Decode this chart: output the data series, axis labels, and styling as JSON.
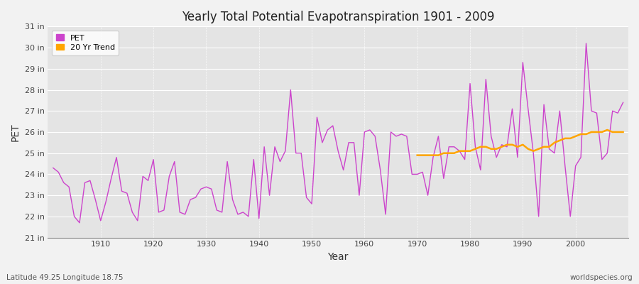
{
  "title": "Yearly Total Potential Evapotranspiration 1901 - 2009",
  "xlabel": "Year",
  "ylabel": "PET",
  "subtitle_left": "Latitude 49.25 Longitude 18.75",
  "subtitle_right": "worldspecies.org",
  "ylim": [
    21,
    31
  ],
  "ytick_labels": [
    "21 in",
    "22 in",
    "23 in",
    "24 in",
    "25 in",
    "26 in",
    "27 in",
    "28 in",
    "29 in",
    "30 in",
    "31 in"
  ],
  "ytick_values": [
    21,
    22,
    23,
    24,
    25,
    26,
    27,
    28,
    29,
    30,
    31
  ],
  "pet_color": "#cc44cc",
  "trend_color": "#ffa500",
  "fig_bg_color": "#f0f0f0",
  "plot_bg_color": "#e0e0e8",
  "legend_labels": [
    "PET",
    "20 Yr Trend"
  ],
  "years": [
    1901,
    1902,
    1903,
    1904,
    1905,
    1906,
    1907,
    1908,
    1909,
    1910,
    1911,
    1912,
    1913,
    1914,
    1915,
    1916,
    1917,
    1918,
    1919,
    1920,
    1921,
    1922,
    1923,
    1924,
    1925,
    1926,
    1927,
    1928,
    1929,
    1930,
    1931,
    1932,
    1933,
    1934,
    1935,
    1936,
    1937,
    1938,
    1939,
    1940,
    1941,
    1942,
    1943,
    1944,
    1945,
    1946,
    1947,
    1948,
    1949,
    1950,
    1951,
    1952,
    1953,
    1954,
    1955,
    1956,
    1957,
    1958,
    1959,
    1960,
    1961,
    1962,
    1963,
    1964,
    1965,
    1966,
    1967,
    1968,
    1969,
    1970,
    1971,
    1972,
    1973,
    1974,
    1975,
    1976,
    1977,
    1978,
    1979,
    1980,
    1981,
    1982,
    1983,
    1984,
    1985,
    1986,
    1987,
    1988,
    1989,
    1990,
    1991,
    1992,
    1993,
    1994,
    1995,
    1996,
    1997,
    1998,
    1999,
    2000,
    2001,
    2002,
    2003,
    2004,
    2005,
    2006,
    2007,
    2008,
    2009
  ],
  "pet_values": [
    24.3,
    24.1,
    23.6,
    23.4,
    22.0,
    21.7,
    23.6,
    23.7,
    22.8,
    21.8,
    22.7,
    23.8,
    24.8,
    23.2,
    23.1,
    22.2,
    21.8,
    23.9,
    23.7,
    24.7,
    22.2,
    22.3,
    23.9,
    24.6,
    22.2,
    22.1,
    22.8,
    22.9,
    23.3,
    23.4,
    23.3,
    22.3,
    22.2,
    24.6,
    22.8,
    22.1,
    22.2,
    22.0,
    24.7,
    21.9,
    25.3,
    23.0,
    25.3,
    24.6,
    25.1,
    28.0,
    25.0,
    25.0,
    22.9,
    22.6,
    26.7,
    25.5,
    26.1,
    26.3,
    25.1,
    24.2,
    25.5,
    25.5,
    23.0,
    26.0,
    26.1,
    25.8,
    24.2,
    22.1,
    26.0,
    25.8,
    25.9,
    25.8,
    24.0,
    24.0,
    24.1,
    23.0,
    24.8,
    25.8,
    23.8,
    25.3,
    25.3,
    25.1,
    24.7,
    28.3,
    25.3,
    24.2,
    28.5,
    25.8,
    24.8,
    25.4,
    25.3,
    27.1,
    24.8,
    29.3,
    27.1,
    25.0,
    22.0,
    27.3,
    25.2,
    25.0,
    27.0,
    24.4,
    22.0,
    24.4,
    24.8,
    30.2,
    27.0,
    26.9,
    24.7,
    25.0,
    27.0,
    26.9,
    27.4
  ],
  "trend_years": [
    1970,
    1971,
    1972,
    1973,
    1974,
    1975,
    1976,
    1977,
    1978,
    1979,
    1980,
    1981,
    1982,
    1983,
    1984,
    1985,
    1986,
    1987,
    1988,
    1989,
    1990,
    1991,
    1992,
    1993,
    1994,
    1995,
    1996,
    1997,
    1998,
    1999,
    2000,
    2001,
    2002,
    2003,
    2004,
    2005,
    2006,
    2007,
    2008,
    2009
  ],
  "trend_values": [
    24.9,
    24.9,
    24.9,
    24.9,
    24.9,
    25.0,
    25.0,
    25.0,
    25.1,
    25.1,
    25.1,
    25.2,
    25.3,
    25.3,
    25.2,
    25.2,
    25.3,
    25.4,
    25.4,
    25.3,
    25.4,
    25.2,
    25.1,
    25.2,
    25.3,
    25.3,
    25.5,
    25.6,
    25.7,
    25.7,
    25.8,
    25.9,
    25.9,
    26.0,
    26.0,
    26.0,
    26.1,
    26.0,
    26.0,
    26.0
  ],
  "xticks": [
    1910,
    1920,
    1930,
    1940,
    1950,
    1960,
    1970,
    1980,
    1990,
    2000
  ],
  "xlim": [
    1900,
    2010
  ]
}
